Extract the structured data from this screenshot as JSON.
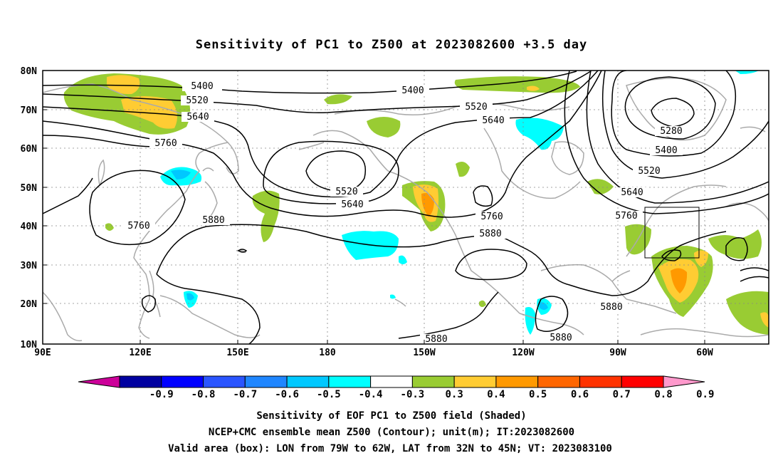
{
  "title": "Sensitivity of PC1 to Z500 at 2023082600 +3.5 day",
  "lat_labels": [
    "80N",
    "70N",
    "60N",
    "50N",
    "40N",
    "30N",
    "20N",
    "10N"
  ],
  "lon_labels": [
    "90E",
    "120E",
    "150E",
    "180",
    "150W",
    "120W",
    "90W",
    "60W"
  ],
  "contour_labels": {
    "c5400a": "5400",
    "c5520a": "5520",
    "c5640a": "5640",
    "c5760a": "5760",
    "c5760b": "5760",
    "c5400b": "5400",
    "c5520b": "5520",
    "c5640b": "5640",
    "c5520c": "5520",
    "c5640c": "5640",
    "c5760c": "5760",
    "c5880a": "5880",
    "c5880b": "5880",
    "c5280": "5280",
    "c5400c": "5400",
    "c5520d": "5520",
    "c5640d": "5640",
    "c5760d": "5760",
    "c5880c": "5880",
    "c5880d": "5880",
    "c5880e": "5880"
  },
  "colorbar": {
    "labels": [
      "-0.9",
      "-0.8",
      "-0.7",
      "-0.6",
      "-0.5",
      "-0.4",
      "-0.3",
      "0.3",
      "0.4",
      "0.5",
      "0.6",
      "0.7",
      "0.8",
      "0.9"
    ],
    "colors": [
      "#0000a0",
      "#0000ff",
      "#2a55ff",
      "#1f86ff",
      "#00c8ff",
      "#00ffff",
      "#ffffff",
      "#99cc33",
      "#ffcc33",
      "#ff9900",
      "#ff6600",
      "#ff3300",
      "#ff0000"
    ],
    "left_tip_color": "#cc0099",
    "right_tip_color": "#ff99cc"
  },
  "caption": {
    "line1": "Sensitivity of EOF PC1 to Z500 field (Shaded)",
    "line2": "NCEP+CMC ensemble mean Z500 (Contour); unit(m); IT:2023082600",
    "line3": "Valid area (box): LON from 79W to 62W, LAT from 32N to 45N; VT: 2023083100"
  }
}
